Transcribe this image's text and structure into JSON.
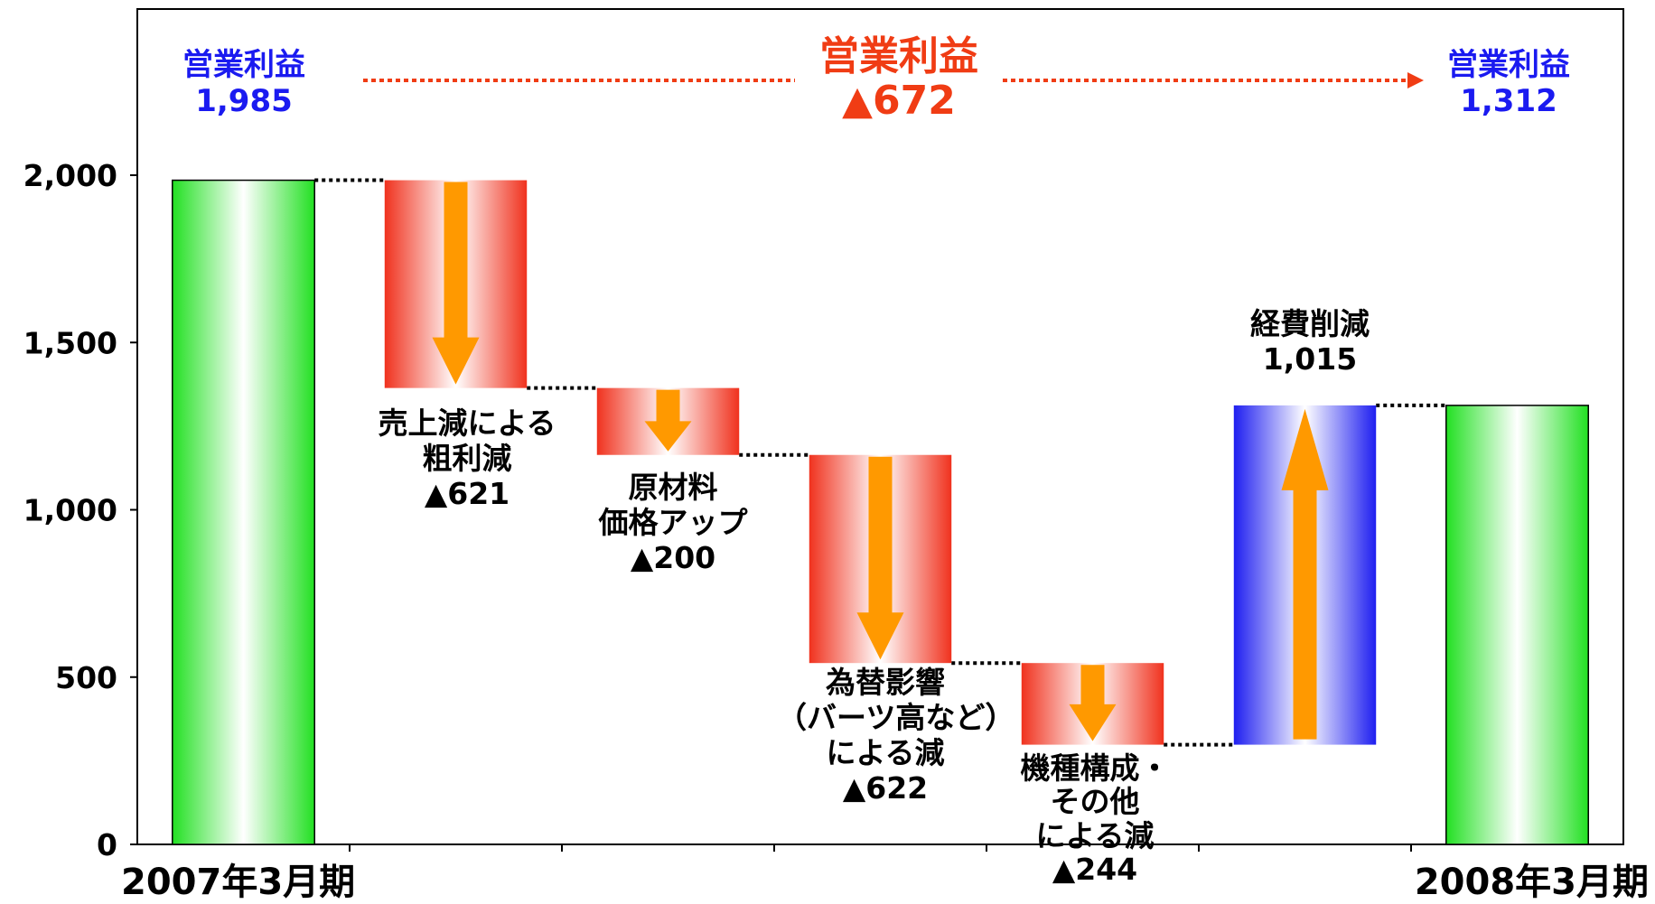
{
  "chart_data": {
    "type": "waterfall",
    "ylim": [
      0,
      2000
    ],
    "yticks": [
      0,
      500,
      1000,
      1500,
      2000
    ],
    "ytick_labels": [
      "0",
      "500",
      "1,000",
      "1,500",
      "2,000"
    ],
    "xtick_labels": [
      "2007年3月期",
      "2008年3月期"
    ],
    "bars": [
      {
        "kind": "total",
        "start": 0,
        "end": 1985
      },
      {
        "kind": "decrease",
        "start": 1985,
        "end": 1364,
        "label": [
          "売上減による",
          "粗利減",
          "▲621"
        ]
      },
      {
        "kind": "decrease",
        "start": 1364,
        "end": 1164,
        "label": [
          "原材料",
          "価格アップ",
          "▲200"
        ]
      },
      {
        "kind": "decrease",
        "start": 1164,
        "end": 542,
        "label": [
          "為替影響",
          "（バーツ高など）",
          "による減",
          "▲622"
        ]
      },
      {
        "kind": "decrease",
        "start": 542,
        "end": 298,
        "label": [
          "機種構成・",
          "その他",
          "による減",
          "▲244"
        ]
      },
      {
        "kind": "increase",
        "start": 298,
        "end": 1312,
        "label": [
          "経費削減",
          "1,015"
        ]
      },
      {
        "kind": "total",
        "start": 0,
        "end": 1312
      }
    ],
    "header": {
      "left": {
        "title": "営業利益",
        "value": "1,985"
      },
      "center": {
        "title": "営業利益",
        "value": "▲672"
      },
      "right": {
        "title": "営業利益",
        "value": "1,312"
      }
    },
    "colors": {
      "total": "#22e022",
      "decrease": "#f0321e",
      "increase": "#1e1ef0",
      "arrow": "#ff9900",
      "header_side": "#1a1af0",
      "header_center": "#f03c14"
    }
  }
}
